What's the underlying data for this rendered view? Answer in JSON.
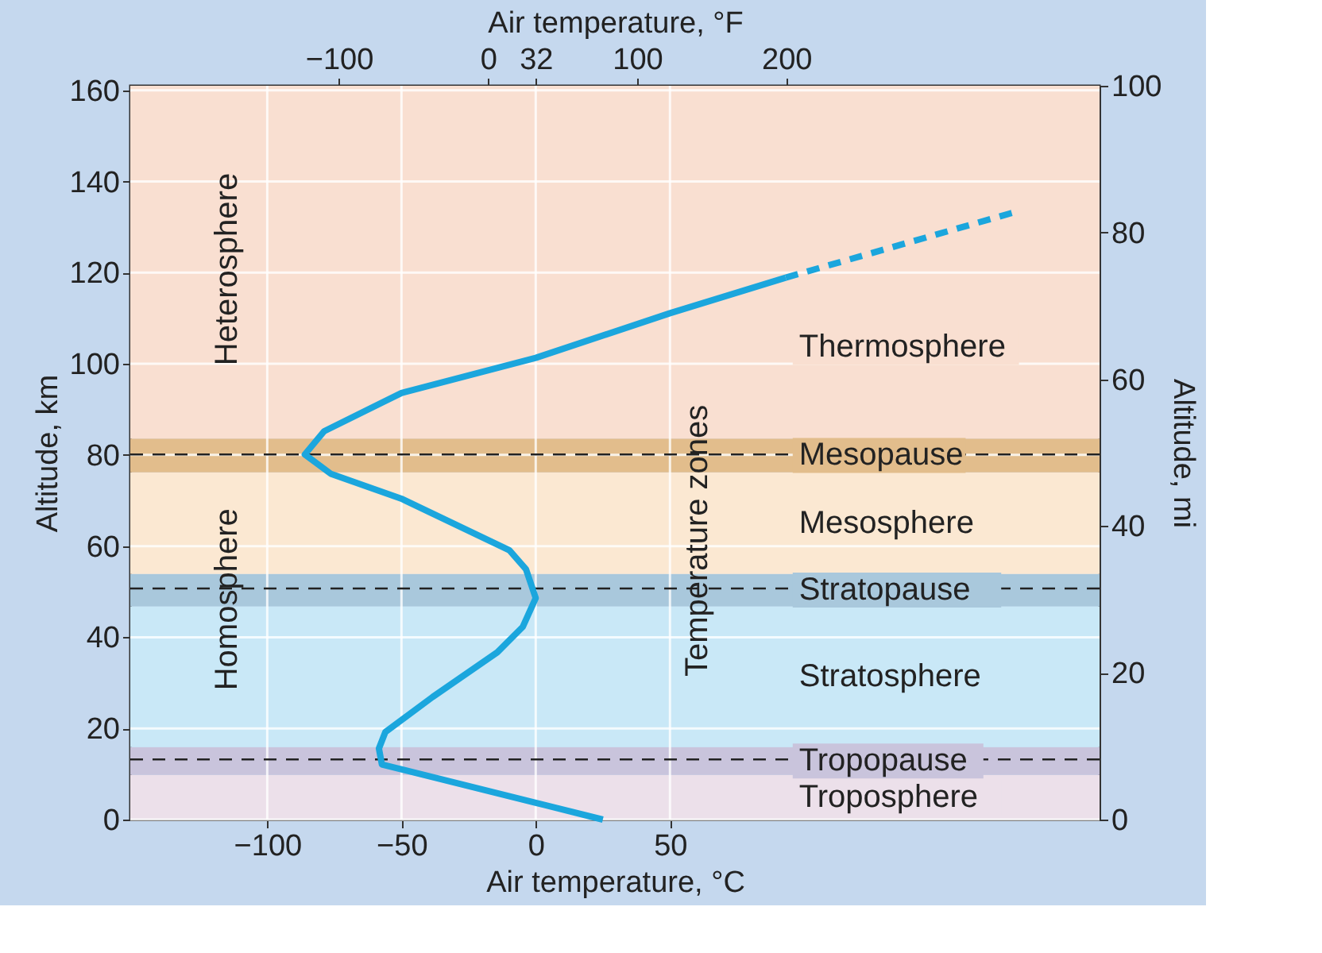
{
  "chart_data": {
    "type": "line",
    "xlabel": "Air temperature, °C",
    "x2label": "Air temperature, °F",
    "ylabel": "Altitude, km",
    "y2label": "Altitude, mi",
    "xlim": [
      -151,
      210
    ],
    "xticks": [
      -100,
      -50,
      0,
      50
    ],
    "x2lim": [
      -239.8,
      410
    ],
    "x2ticks": [
      -100,
      0,
      32,
      100,
      200
    ],
    "ylim": [
      0,
      161
    ],
    "yticks": [
      0,
      20,
      40,
      60,
      80,
      100,
      120,
      140,
      160
    ],
    "y2lim": [
      0,
      100
    ],
    "y2ticks": [
      0,
      20,
      40,
      60,
      80,
      100
    ],
    "grid": true,
    "series": [
      {
        "color": "#1ba6dd",
        "line_style": "solid",
        "x": [
          25,
          0,
          -57.3,
          -58.4,
          -56,
          -38.4,
          -14.3,
          -4.8,
          0,
          -3.6,
          -9.8,
          -50,
          -76.4,
          -86,
          -78.8,
          -50,
          0,
          50,
          93.1
        ],
        "values": [
          0,
          3.7,
          12.1,
          15.6,
          19.2,
          26.9,
          36.7,
          42.3,
          48.6,
          54.9,
          59.1,
          70.4,
          75.9,
          80.1,
          85.2,
          93.6,
          101.3,
          111.1,
          118.9
        ]
      },
      {
        "color": "#1ba6dd",
        "line_style": "dashed",
        "x": [
          93.1,
          180.3
        ],
        "values": [
          118.9,
          133.6
        ]
      }
    ],
    "bands": [
      {
        "axis": "y",
        "from": 0,
        "to": 9.8,
        "label": "Troposphere",
        "color": "#ece0ea"
      },
      {
        "axis": "y",
        "from": 9.8,
        "to": 15.9,
        "label": "Tropopause",
        "color": "#c9c4dc"
      },
      {
        "axis": "y",
        "from": 15.9,
        "to": 46.8,
        "label": "Stratosphere",
        "color": "#c9e8f7"
      },
      {
        "axis": "y",
        "from": 46.8,
        "to": 53.9,
        "label": "Stratopause",
        "color": "#a9c8dc"
      },
      {
        "axis": "y",
        "from": 53.9,
        "to": 76.2,
        "label": "Mesosphere",
        "color": "#fbe8d2"
      },
      {
        "axis": "y",
        "from": 76.2,
        "to": 83.6,
        "label": "Mesopause",
        "color": "#e2bd8c"
      },
      {
        "axis": "y",
        "from": 83.6,
        "to": 161,
        "label": "Thermosphere",
        "color": "#f9dfd1"
      }
    ],
    "ref_lines": [
      {
        "axis": "y",
        "value": 13.2,
        "color": "#222222",
        "line_style": "dashed"
      },
      {
        "axis": "y",
        "value": 50.7,
        "color": "#222222",
        "line_style": "dashed"
      },
      {
        "axis": "y",
        "value": 80.1,
        "color": "#222222",
        "line_style": "dashed"
      }
    ],
    "annotations": [
      "Heterosphere",
      "Homosphere",
      "Temperature zones"
    ]
  }
}
